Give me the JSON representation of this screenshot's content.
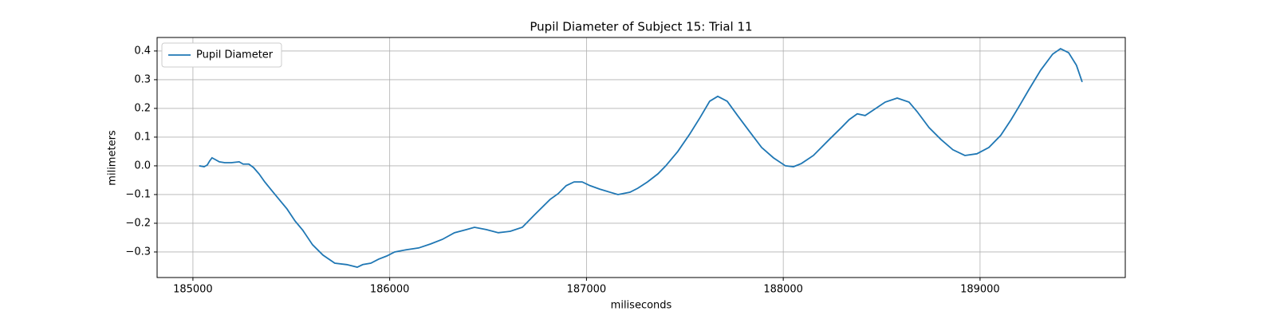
{
  "chart_data": {
    "type": "line",
    "title": "Pupil Diameter of Subject 15: Trial 11",
    "x_label": "miliseconds",
    "y_label": "milimeters",
    "x": [
      185032,
      185057,
      185073,
      185085,
      185097,
      185113,
      185134,
      185162,
      185195,
      185235,
      185255,
      185284,
      185308,
      185336,
      185365,
      185397,
      185438,
      185478,
      185519,
      185559,
      185608,
      185661,
      185721,
      185782,
      185835,
      185863,
      185904,
      185944,
      185985,
      186025,
      186086,
      186147,
      186208,
      186268,
      186329,
      186390,
      186431,
      186491,
      186552,
      186613,
      186674,
      186734,
      186815,
      186856,
      186897,
      186937,
      186978,
      187018,
      187067,
      187120,
      187160,
      187221,
      187261,
      187310,
      187363,
      187403,
      187464,
      187525,
      187578,
      187626,
      187667,
      187715,
      187768,
      187829,
      187890,
      187950,
      188011,
      188052,
      188092,
      188153,
      188234,
      188295,
      188335,
      188376,
      188416,
      188457,
      188518,
      188579,
      188639,
      188680,
      188741,
      188801,
      188862,
      188923,
      188984,
      189045,
      189105,
      189158,
      189207,
      189247,
      189308,
      189369,
      189409,
      189450,
      189490,
      189519
    ],
    "series": [
      {
        "name": "Pupil Diameter",
        "color": "#1f77b4",
        "values": [
          0,
          -0.003,
          0.003,
          0.017,
          0.028,
          0.022,
          0.014,
          0.011,
          0.011,
          0.014,
          0.006,
          0.006,
          -0.006,
          -0.028,
          -0.056,
          -0.083,
          -0.117,
          -0.15,
          -0.192,
          -0.225,
          -0.275,
          -0.311,
          -0.339,
          -0.344,
          -0.353,
          -0.344,
          -0.339,
          -0.325,
          -0.314,
          -0.3,
          -0.292,
          -0.286,
          -0.272,
          -0.256,
          -0.233,
          -0.222,
          -0.214,
          -0.222,
          -0.233,
          -0.228,
          -0.214,
          -0.172,
          -0.117,
          -0.097,
          -0.069,
          -0.056,
          -0.056,
          -0.069,
          -0.081,
          -0.092,
          -0.1,
          -0.092,
          -0.078,
          -0.056,
          -0.028,
          0,
          0.05,
          0.111,
          0.169,
          0.225,
          0.242,
          0.225,
          0.175,
          0.119,
          0.064,
          0.028,
          0,
          -0.003,
          0.008,
          0.036,
          0.092,
          0.133,
          0.161,
          0.181,
          0.175,
          0.194,
          0.222,
          0.236,
          0.222,
          0.189,
          0.133,
          0.092,
          0.056,
          0.036,
          0.042,
          0.064,
          0.106,
          0.161,
          0.217,
          0.264,
          0.333,
          0.389,
          0.408,
          0.394,
          0.35,
          0.292
        ]
      }
    ],
    "xlim": [
      184818,
      189738
    ],
    "xticks": [
      185000,
      186000,
      187000,
      188000,
      189000
    ],
    "ylim": [
      -0.389,
      0.447
    ],
    "yticks": [
      {
        "value": -0.3,
        "label": "−0.3"
      },
      {
        "value": -0.2,
        "label": "−0.2"
      },
      {
        "value": -0.1,
        "label": "−0.1"
      },
      {
        "value": 0,
        "label": "0.0"
      },
      0.1,
      0.2,
      0.3,
      0.4
    ],
    "grid": true,
    "legend": "upper-left"
  }
}
